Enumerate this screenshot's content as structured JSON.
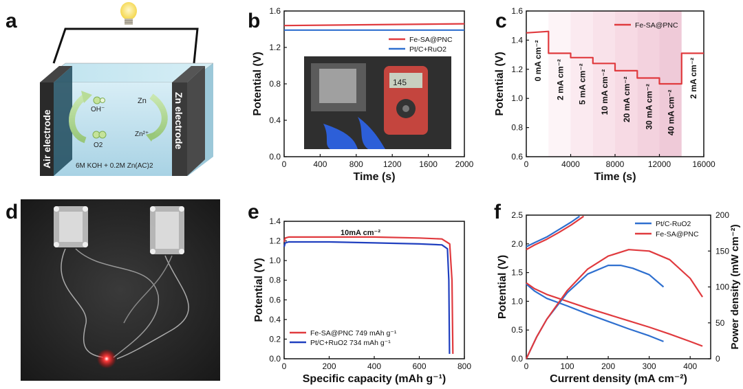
{
  "panel_letters": {
    "a": "a",
    "b": "b",
    "c": "c",
    "d": "d",
    "e": "e",
    "f": "f"
  },
  "panel_a": {
    "left_label": "Air electrode",
    "right_label": "Zn electrode",
    "electrolyte": "6M KOH + 0.2M Zn(AC)2",
    "oh_label": "OH⁻",
    "o2_label": "O2",
    "zn_label": "Zn",
    "zn2_label": "Zn²⁺",
    "bulb_icon": "light-bulb-icon"
  },
  "panel_d": {
    "photo_desc": "two-battery-cells-lighting-red-led-icon"
  },
  "chart_data": [
    {
      "panel": "b",
      "type": "line",
      "xlabel": "Time (s)",
      "ylabel": "Potential (V)",
      "xlim": [
        0,
        2000
      ],
      "ylim": [
        0,
        1.6
      ],
      "xticks": [
        0,
        400,
        800,
        1200,
        1600,
        2000
      ],
      "yticks": [
        0.0,
        0.4,
        0.8,
        1.2,
        1.6
      ],
      "legend": "top-right",
      "series": [
        {
          "name": "Fe-SA@PNC",
          "color": "#e03a3e",
          "x": [
            0,
            2000
          ],
          "y": [
            1.44,
            1.46
          ]
        },
        {
          "name": "Pt/C+RuO2",
          "color": "#2e6fcf",
          "x": [
            0,
            2000
          ],
          "y": [
            1.39,
            1.39
          ]
        }
      ],
      "inset": "photo-of-cells-connected-to-multimeter-reading-1.45"
    },
    {
      "panel": "c",
      "type": "line",
      "xlabel": "Time (s)",
      "ylabel": "Potential (V)",
      "xlim": [
        0,
        16000
      ],
      "ylim": [
        0.6,
        1.6
      ],
      "xticks": [
        0,
        4000,
        8000,
        12000,
        16000
      ],
      "yticks": [
        0.6,
        0.8,
        1.0,
        1.2,
        1.4,
        1.6
      ],
      "legend": "top-right",
      "series": [
        {
          "name": "Fe-SA@PNC",
          "color": "#e03a3e",
          "x": [
            0,
            2000,
            2000,
            4000,
            4000,
            6000,
            6000,
            8000,
            8000,
            10000,
            10000,
            12000,
            12000,
            14000,
            14000,
            16000
          ],
          "y": [
            1.45,
            1.46,
            1.31,
            1.31,
            1.28,
            1.28,
            1.24,
            1.24,
            1.19,
            1.19,
            1.14,
            1.14,
            1.1,
            1.1,
            1.31,
            1.31
          ]
        }
      ],
      "annotations": [
        "0 mA cm⁻²",
        "2 mA cm⁻²",
        "5 mA cm⁻²",
        "10 mA cm⁻²",
        "20 mA cm⁻²",
        "30 mA cm⁻²",
        "40 mA cm⁻²",
        "2 mA cm⁻²"
      ]
    },
    {
      "panel": "e",
      "type": "line",
      "xlabel": "Specific capacity (mAh g⁻¹)",
      "ylabel": "Potential (V)",
      "xlim": [
        0,
        800
      ],
      "ylim": [
        0,
        1.4
      ],
      "xticks": [
        0,
        200,
        400,
        600,
        800
      ],
      "yticks": [
        0.0,
        0.2,
        0.4,
        0.6,
        0.8,
        1.0,
        1.2,
        1.4
      ],
      "legend": "bottom-left",
      "annotation": "10mA cm⁻²",
      "series": [
        {
          "name": "Fe-SA@PNC   749 mAh g⁻¹",
          "color": "#e03a3e",
          "x": [
            0,
            5,
            20,
            200,
            400,
            600,
            700,
            735,
            745,
            749
          ],
          "y": [
            1.19,
            1.23,
            1.24,
            1.24,
            1.24,
            1.23,
            1.22,
            1.17,
            0.8,
            0.05
          ]
        },
        {
          "name": "Pt/C+RuO2   734 mAh g⁻¹",
          "color": "#1f3fbf",
          "x": [
            0,
            5,
            20,
            200,
            400,
            600,
            700,
            725,
            731,
            734
          ],
          "y": [
            1.14,
            1.18,
            1.19,
            1.19,
            1.18,
            1.17,
            1.16,
            1.12,
            0.8,
            0.05
          ]
        }
      ]
    },
    {
      "panel": "f",
      "type": "line",
      "xlabel": "Current density (mA cm⁻²)",
      "ylabel": "Potential (V)",
      "y2label": "Power density (mW cm⁻²)",
      "xlim": [
        0,
        450
      ],
      "ylim": [
        0,
        2.5
      ],
      "y2lim": [
        0,
        200
      ],
      "xticks": [
        0,
        100,
        200,
        300,
        400
      ],
      "yticks": [
        0.0,
        0.5,
        1.0,
        1.5,
        2.0,
        2.5
      ],
      "y2ticks": [
        0,
        50,
        100,
        150,
        200
      ],
      "legend": "top-right",
      "series": [
        {
          "name": "Pt/C-RuO2",
          "color": "#2e6fcf",
          "axis": "left",
          "role": "charge",
          "x": [
            0,
            20,
            50,
            80,
            110,
            130
          ],
          "y": [
            1.95,
            2.02,
            2.12,
            2.25,
            2.38,
            2.48
          ]
        },
        {
          "name": "Fe-SA@PNC",
          "color": "#e03a3e",
          "axis": "left",
          "role": "charge",
          "x": [
            0,
            20,
            50,
            80,
            110,
            140
          ],
          "y": [
            1.9,
            1.98,
            2.08,
            2.2,
            2.33,
            2.48
          ]
        },
        {
          "name": "",
          "color": "#2e6fcf",
          "axis": "left",
          "role": "discharge",
          "x": [
            0,
            20,
            50,
            100,
            150,
            200,
            250,
            300,
            335
          ],
          "y": [
            1.3,
            1.18,
            1.05,
            0.92,
            0.78,
            0.65,
            0.52,
            0.4,
            0.3
          ]
        },
        {
          "name": "",
          "color": "#e03a3e",
          "axis": "left",
          "role": "discharge",
          "x": [
            0,
            20,
            50,
            100,
            150,
            200,
            250,
            300,
            350,
            400,
            430
          ],
          "y": [
            1.32,
            1.22,
            1.12,
            1.0,
            0.88,
            0.77,
            0.66,
            0.55,
            0.43,
            0.3,
            0.22
          ]
        },
        {
          "name": "",
          "color": "#2e6fcf",
          "axis": "right",
          "role": "power",
          "x": [
            0,
            25,
            50,
            100,
            150,
            200,
            230,
            260,
            300,
            335
          ],
          "y": [
            0,
            30,
            55,
            92,
            118,
            130,
            130,
            126,
            117,
            100
          ]
        },
        {
          "name": "",
          "color": "#e03a3e",
          "axis": "right",
          "role": "power",
          "x": [
            0,
            25,
            50,
            100,
            150,
            200,
            250,
            300,
            350,
            400,
            430
          ],
          "y": [
            0,
            30,
            55,
            95,
            125,
            143,
            152,
            150,
            138,
            112,
            86
          ]
        }
      ]
    }
  ]
}
